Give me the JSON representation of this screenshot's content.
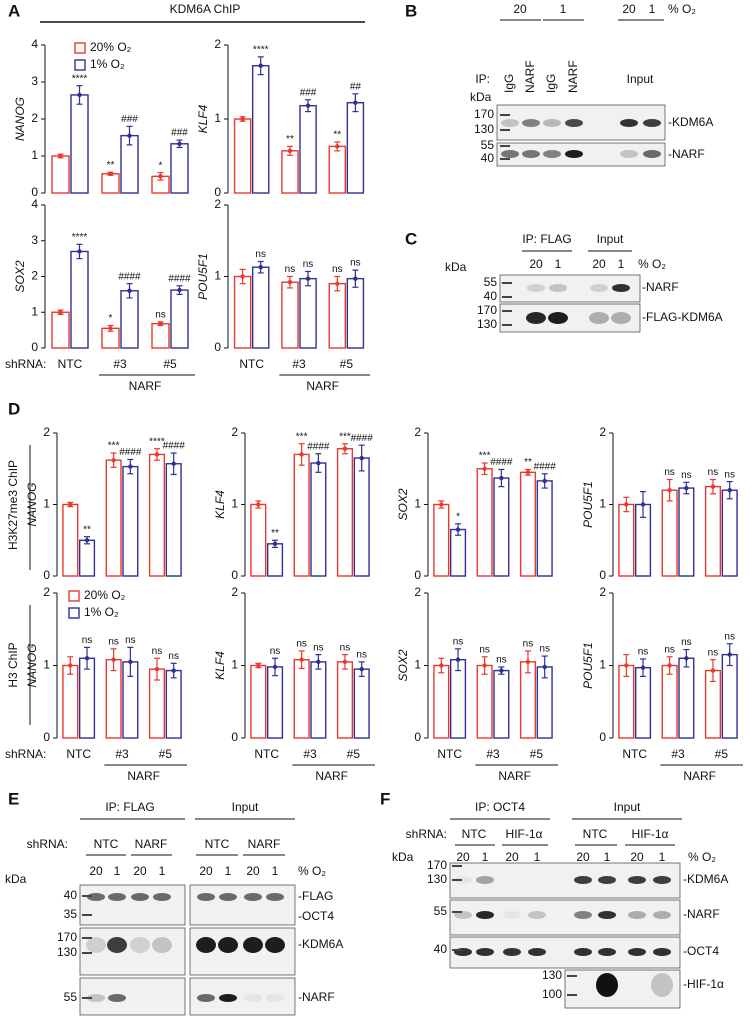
{
  "panel_letters": [
    "A",
    "B",
    "C",
    "D",
    "E",
    "F"
  ],
  "panel_A": {
    "title": "KDM6A ChIP",
    "shrna_label": "shRNA:"
  },
  "panel_D": {
    "row_labels": [
      "H3K27me3 ChIP",
      "H3 ChIP"
    ],
    "shrna_label": "shRNA:"
  },
  "chart_data": [
    {
      "type": "bar",
      "y_label": "NANOG",
      "ylim": [
        0,
        4
      ],
      "yticks": [
        0,
        1,
        2,
        3,
        4
      ],
      "series": [
        {
          "name": "20% O₂",
          "color": "#e8392f",
          "values": [
            1.0,
            0.52,
            0.45
          ],
          "errors": [
            0.05,
            0.04,
            0.1
          ],
          "sig_labels": [
            null,
            "**",
            "*"
          ]
        },
        {
          "name": "1% O₂",
          "color": "#2e3192",
          "values": [
            2.65,
            1.55,
            1.33
          ],
          "errors": [
            0.25,
            0.25,
            0.1
          ],
          "sig_labels": [
            "****",
            "###",
            "###"
          ]
        }
      ]
    },
    {
      "type": "bar",
      "y_label": "KLF4",
      "ylim": [
        0,
        2
      ],
      "yticks": [
        0,
        1,
        2
      ],
      "series": [
        {
          "color": "#e8392f",
          "values": [
            1.0,
            0.57,
            0.63
          ],
          "errors": [
            0.03,
            0.06,
            0.06
          ],
          "sig_labels": [
            null,
            "**",
            "**"
          ]
        },
        {
          "color": "#2e3192",
          "values": [
            1.72,
            1.18,
            1.22
          ],
          "errors": [
            0.12,
            0.08,
            0.12
          ],
          "sig_labels": [
            "****",
            "###",
            "##"
          ]
        }
      ]
    },
    {
      "type": "bar",
      "y_label": "SOX2",
      "ylim": [
        0,
        4
      ],
      "yticks": [
        0,
        1,
        2,
        3,
        4
      ],
      "categories": [
        "NTC",
        "#3",
        "#5"
      ],
      "group_label": "NARF",
      "series": [
        {
          "color": "#e8392f",
          "values": [
            1.0,
            0.55,
            0.68
          ],
          "errors": [
            0.06,
            0.08,
            0.05
          ],
          "sig_labels": [
            null,
            "*",
            "ns"
          ]
        },
        {
          "color": "#2e3192",
          "values": [
            2.7,
            1.6,
            1.62
          ],
          "errors": [
            0.2,
            0.2,
            0.12
          ],
          "sig_labels": [
            "****",
            "####",
            "####"
          ]
        }
      ]
    },
    {
      "type": "bar",
      "y_label": "POU5F1",
      "ylim": [
        0,
        2
      ],
      "yticks": [
        0,
        1,
        2
      ],
      "categories": [
        "NTC",
        "#3",
        "#5"
      ],
      "group_label": "NARF",
      "series": [
        {
          "color": "#e8392f",
          "values": [
            1.0,
            0.92,
            0.9
          ],
          "errors": [
            0.1,
            0.08,
            0.1
          ],
          "sig_labels": [
            null,
            "ns",
            "ns"
          ]
        },
        {
          "color": "#2e3192",
          "values": [
            1.13,
            0.97,
            0.97
          ],
          "errors": [
            0.08,
            0.1,
            0.12
          ],
          "sig_labels": [
            "ns",
            "ns",
            "ns"
          ]
        }
      ]
    },
    {
      "type": "bar",
      "y_label": "NANOG",
      "ylim": [
        0,
        2
      ],
      "yticks": [
        0,
        1,
        2
      ],
      "series": [
        {
          "color": "#e8392f",
          "values": [
            1.0,
            1.62,
            1.7
          ],
          "errors": [
            0.03,
            0.1,
            0.08
          ],
          "sig_labels": [
            null,
            "***",
            "****"
          ]
        },
        {
          "color": "#2e3192",
          "values": [
            0.5,
            1.53,
            1.57
          ],
          "errors": [
            0.05,
            0.1,
            0.15
          ],
          "sig_labels": [
            "**",
            "####",
            "####"
          ]
        }
      ]
    },
    {
      "type": "bar",
      "y_label": "KLF4",
      "ylim": [
        0,
        2
      ],
      "yticks": [
        0,
        1,
        2
      ],
      "series": [
        {
          "color": "#e8392f",
          "values": [
            1.0,
            1.7,
            1.78
          ],
          "errors": [
            0.05,
            0.15,
            0.07
          ],
          "sig_labels": [
            null,
            "***",
            "***"
          ]
        },
        {
          "color": "#2e3192",
          "values": [
            0.45,
            1.58,
            1.65
          ],
          "errors": [
            0.05,
            0.13,
            0.18
          ],
          "sig_labels": [
            "**",
            "####",
            "####"
          ]
        }
      ]
    },
    {
      "type": "bar",
      "y_label": "SOX2",
      "ylim": [
        0,
        2
      ],
      "yticks": [
        0,
        1,
        2
      ],
      "series": [
        {
          "color": "#e8392f",
          "values": [
            1.0,
            1.5,
            1.45
          ],
          "errors": [
            0.05,
            0.08,
            0.04
          ],
          "sig_labels": [
            null,
            "***",
            "**"
          ]
        },
        {
          "color": "#2e3192",
          "values": [
            0.65,
            1.37,
            1.33
          ],
          "errors": [
            0.08,
            0.12,
            0.1
          ],
          "sig_labels": [
            "*",
            "####",
            "####"
          ]
        }
      ]
    },
    {
      "type": "bar",
      "y_label": "POU5F1",
      "ylim": [
        0,
        2
      ],
      "yticks": [
        0,
        1,
        2
      ],
      "series": [
        {
          "color": "#e8392f",
          "values": [
            1.0,
            1.2,
            1.25
          ],
          "errors": [
            0.1,
            0.15,
            0.1
          ],
          "sig_labels": [
            null,
            "ns",
            "ns"
          ]
        },
        {
          "color": "#2e3192",
          "values": [
            1.0,
            1.23,
            1.2
          ],
          "errors": [
            0.18,
            0.08,
            0.12
          ],
          "sig_labels": [
            null,
            "ns",
            "ns"
          ]
        }
      ]
    },
    {
      "type": "bar",
      "y_label": "NANOG",
      "ylim": [
        0,
        2
      ],
      "yticks": [
        0,
        1,
        2
      ],
      "categories": [
        "NTC",
        "#3",
        "#5"
      ],
      "group_label": "NARF",
      "series": [
        {
          "name": "20% O₂",
          "color": "#e8392f",
          "values": [
            1.0,
            1.08,
            0.95
          ],
          "errors": [
            0.12,
            0.15,
            0.15
          ],
          "sig_labels": [
            null,
            "ns",
            "ns"
          ]
        },
        {
          "name": "1% O₂",
          "color": "#2e3192",
          "values": [
            1.1,
            1.05,
            0.93
          ],
          "errors": [
            0.15,
            0.2,
            0.1
          ],
          "sig_labels": [
            "ns",
            "ns",
            "ns"
          ]
        }
      ]
    },
    {
      "type": "bar",
      "y_label": "KLF4",
      "ylim": [
        0,
        2
      ],
      "yticks": [
        0,
        1,
        2
      ],
      "categories": [
        "NTC",
        "#3",
        "#5"
      ],
      "group_label": "NARF",
      "series": [
        {
          "color": "#e8392f",
          "values": [
            1.0,
            1.08,
            1.05
          ],
          "errors": [
            0.03,
            0.12,
            0.1
          ],
          "sig_labels": [
            null,
            "ns",
            "ns"
          ]
        },
        {
          "color": "#2e3192",
          "values": [
            0.98,
            1.05,
            0.95
          ],
          "errors": [
            0.12,
            0.1,
            0.1
          ],
          "sig_labels": [
            "ns",
            "ns",
            "ns"
          ]
        }
      ]
    },
    {
      "type": "bar",
      "y_label": "SOX2",
      "ylim": [
        0,
        2
      ],
      "yticks": [
        0,
        1,
        2
      ],
      "categories": [
        "NTC",
        "#3",
        "#5"
      ],
      "group_label": "NARF",
      "series": [
        {
          "color": "#e8392f",
          "values": [
            1.0,
            1.0,
            1.05
          ],
          "errors": [
            0.1,
            0.12,
            0.15
          ],
          "sig_labels": [
            null,
            "ns",
            "ns"
          ]
        },
        {
          "color": "#2e3192",
          "values": [
            1.08,
            0.93,
            0.98
          ],
          "errors": [
            0.15,
            0.05,
            0.15
          ],
          "sig_labels": [
            "ns",
            "ns",
            "ns"
          ]
        }
      ]
    },
    {
      "type": "bar",
      "y_label": "POU5F1",
      "ylim": [
        0,
        2
      ],
      "yticks": [
        0,
        1,
        2
      ],
      "categories": [
        "NTC",
        "#3",
        "#5"
      ],
      "group_label": "NARF",
      "series": [
        {
          "color": "#e8392f",
          "values": [
            1.0,
            1.0,
            0.93
          ],
          "errors": [
            0.15,
            0.12,
            0.15
          ],
          "sig_labels": [
            null,
            "ns",
            "ns"
          ]
        },
        {
          "color": "#2e3192",
          "values": [
            0.97,
            1.1,
            1.15
          ],
          "errors": [
            0.12,
            0.12,
            0.15
          ],
          "sig_labels": [
            "ns",
            "ns",
            "ns"
          ]
        }
      ]
    }
  ],
  "blot_B": {
    "o2": [
      "20",
      "1",
      "20",
      "1"
    ],
    "o2_unit": "% O₂",
    "ip_label": "IP:",
    "lanes": [
      "IgG",
      "NARF",
      "IgG",
      "NARF"
    ],
    "input_label": "Input",
    "kda": "kDa",
    "markers": [
      "170",
      "130",
      "55",
      "40"
    ],
    "bands": [
      "-KDM6A",
      "-NARF"
    ]
  },
  "blot_C": {
    "ip_label": "IP: FLAG",
    "input_label": "Input",
    "o2": [
      "20",
      "1",
      "20",
      "1"
    ],
    "o2_unit": "% O₂",
    "kda": "kDa",
    "markers": [
      "55",
      "40",
      "170",
      "130"
    ],
    "bands": [
      "-NARF",
      "-FLAG-KDM6A"
    ]
  },
  "blot_E": {
    "ip_label": "IP: FLAG",
    "input_label": "Input",
    "shrna_label": "shRNA:",
    "shrna": [
      "NTC",
      "NARF",
      "NTC",
      "NARF"
    ],
    "o2": [
      "20",
      "1",
      "20",
      "1",
      "20",
      "1",
      "20",
      "1"
    ],
    "o2_unit": "% O₂",
    "kda": "kDa",
    "markers": [
      "40",
      "35",
      "170",
      "130",
      "55"
    ],
    "bands": [
      "-FLAG",
      "-OCT4",
      "-KDM6A",
      "-NARF"
    ]
  },
  "blot_F": {
    "ip_label": "IP: OCT4",
    "input_label": "Input",
    "shrna_label": "shRNA:",
    "shrna": [
      "NTC",
      "HIF-1α",
      "NTC",
      "HIF-1α"
    ],
    "kda": "kDa",
    "o2": [
      "20",
      "1",
      "20",
      "1",
      "20",
      "1",
      "20",
      "1"
    ],
    "o2_unit": "% O₂",
    "markers": [
      "170",
      "130",
      "55",
      "40",
      "130",
      "100"
    ],
    "bands": [
      "-KDM6A",
      "-NARF",
      "-OCT4",
      "-HIF-1α"
    ]
  }
}
